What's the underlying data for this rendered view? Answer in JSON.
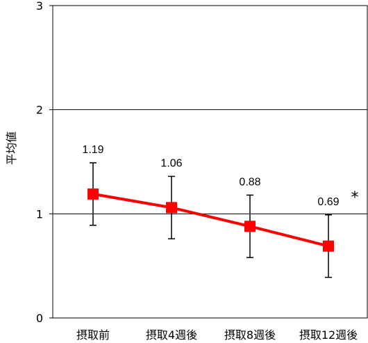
{
  "chart_data": {
    "type": "line",
    "categories": [
      "摂取前",
      "摂取4週後",
      "摂取8週後",
      "摂取12週後"
    ],
    "ylabel": "平均値",
    "ylim": [
      0,
      3
    ],
    "yticks": [
      "0",
      "1",
      "2",
      "3"
    ],
    "grid": true,
    "series": [
      {
        "values": [
          1.19,
          1.06,
          0.88,
          0.69
        ],
        "error_upper": [
          1.49,
          1.36,
          1.18,
          0.99
        ],
        "error_lower": [
          0.89,
          0.76,
          0.58,
          0.39
        ],
        "data_labels": [
          "1.19",
          "1.06",
          "0.88",
          "0.69"
        ],
        "color": "#ff0000"
      }
    ],
    "annotations": [
      {
        "category_index": 3,
        "text": "*"
      }
    ]
  }
}
